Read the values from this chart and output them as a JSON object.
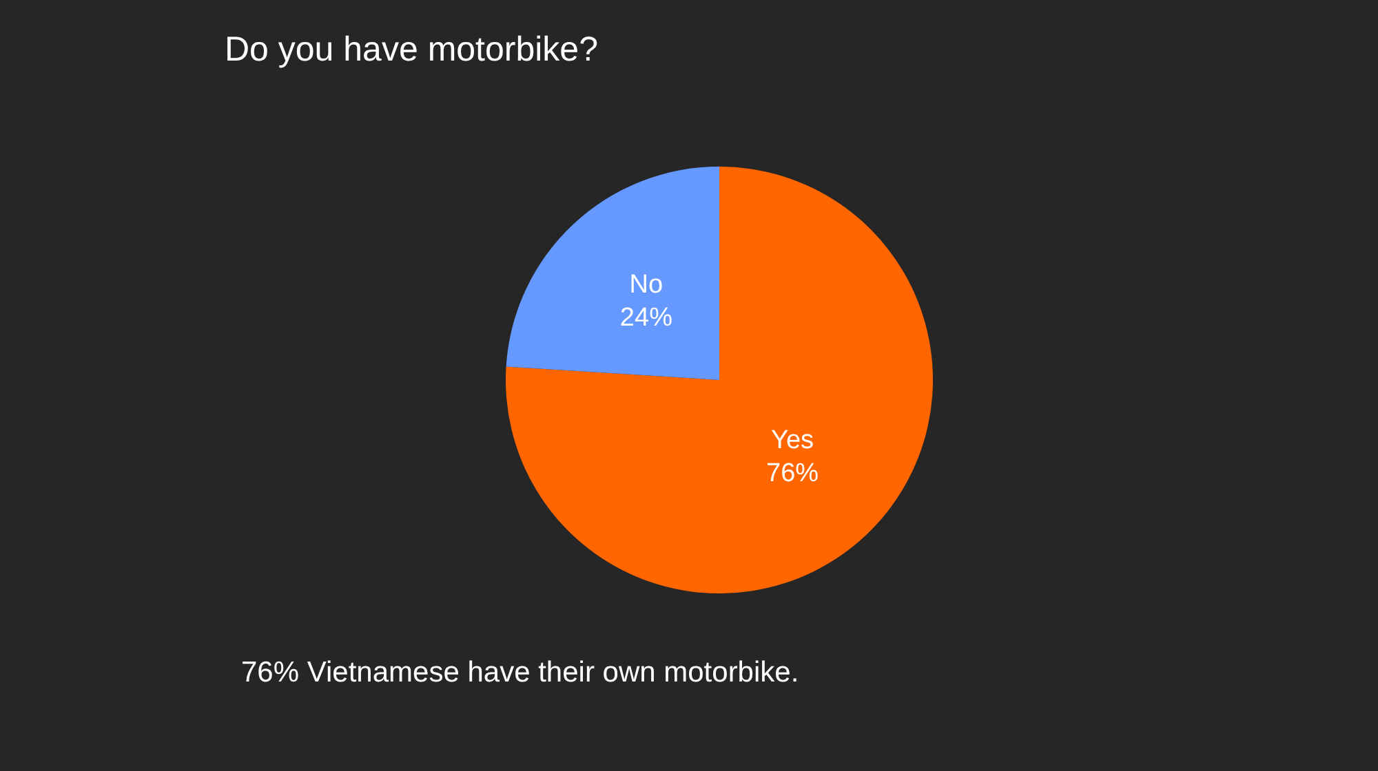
{
  "chart_data": {
    "type": "pie",
    "title": "Do you have motorbike?",
    "categories": [
      "Yes",
      "No"
    ],
    "values": [
      76,
      24
    ],
    "value_labels": [
      "76%",
      "24%"
    ],
    "colors": [
      "#ff6600",
      "#6699ff"
    ],
    "annotations": [
      "76% Vietnamese have their own motorbike."
    ]
  }
}
